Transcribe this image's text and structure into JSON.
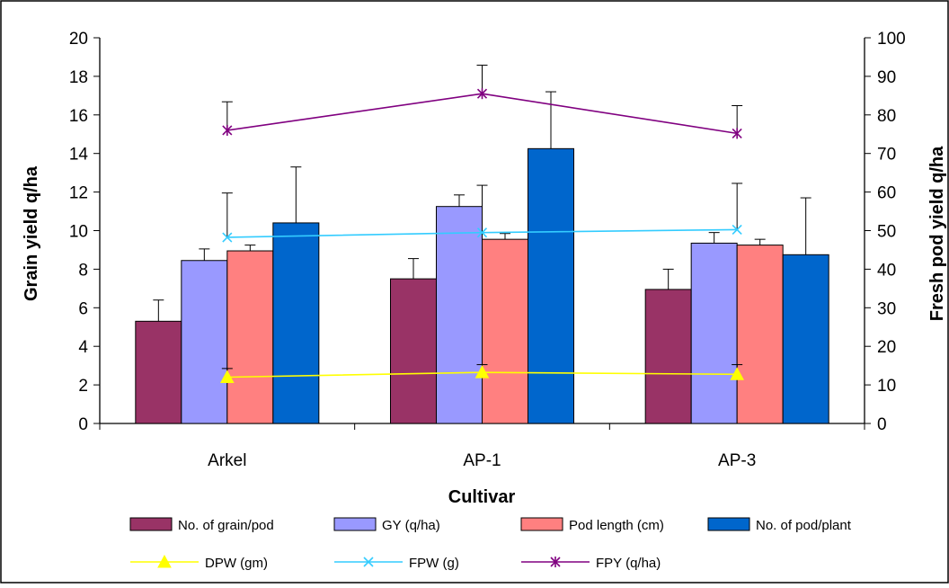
{
  "chart_data": {
    "type": "bar",
    "xlabel": "Cultivar",
    "ylabel": "Grain yield q/ha",
    "y2label": "Fresh pod yield q/ha",
    "categories": [
      "Arkel",
      "AP-1",
      "AP-3"
    ],
    "ylim": [
      0,
      20
    ],
    "y2lim": [
      0,
      100
    ],
    "yticks": [
      "0",
      "2",
      "4",
      "6",
      "8",
      "10",
      "12",
      "14",
      "16",
      "18",
      "20"
    ],
    "y2ticks": [
      "0",
      "10",
      "20",
      "30",
      "40",
      "50",
      "60",
      "70",
      "80",
      "90",
      "100"
    ],
    "grid": false,
    "legend_position": "bottom",
    "bar_series": [
      {
        "name": "No. of grain/pod",
        "color": "#993366",
        "values": [
          5.3,
          7.5,
          6.95
        ],
        "errors": [
          1.1,
          1.05,
          1.05
        ]
      },
      {
        "name": "GY (q/ha)",
        "color": "#9999ff",
        "values": [
          8.45,
          11.25,
          9.35
        ],
        "errors": [
          0.6,
          0.6,
          0.55
        ]
      },
      {
        "name": "Pod length (cm)",
        "color": "#ff8080",
        "values": [
          8.95,
          9.55,
          9.25
        ],
        "errors": [
          0.3,
          0.3,
          0.3
        ]
      },
      {
        "name": "No. of pod/plant",
        "color": "#0066cc",
        "values": [
          10.4,
          14.25,
          8.75
        ],
        "errors": [
          2.9,
          2.95,
          2.95
        ]
      }
    ],
    "line_series": [
      {
        "name": "DPW (gm)",
        "color": "#ffff00",
        "marker": "triangle",
        "axis": "left",
        "values": [
          2.4,
          2.65,
          2.55
        ],
        "errors": [
          0.45,
          0.4,
          0.5
        ]
      },
      {
        "name": "FPW (g)",
        "color": "#33ccff",
        "marker": "x",
        "axis": "left",
        "values": [
          9.65,
          9.9,
          10.05
        ],
        "errors": [
          2.3,
          2.45,
          2.4
        ]
      },
      {
        "name": "FPY   (q/ha)",
        "color": "#800080",
        "marker": "star",
        "axis": "right",
        "values": [
          76.0,
          85.5,
          75.2
        ],
        "errors": [
          7.4,
          7.4,
          7.2
        ]
      }
    ]
  }
}
